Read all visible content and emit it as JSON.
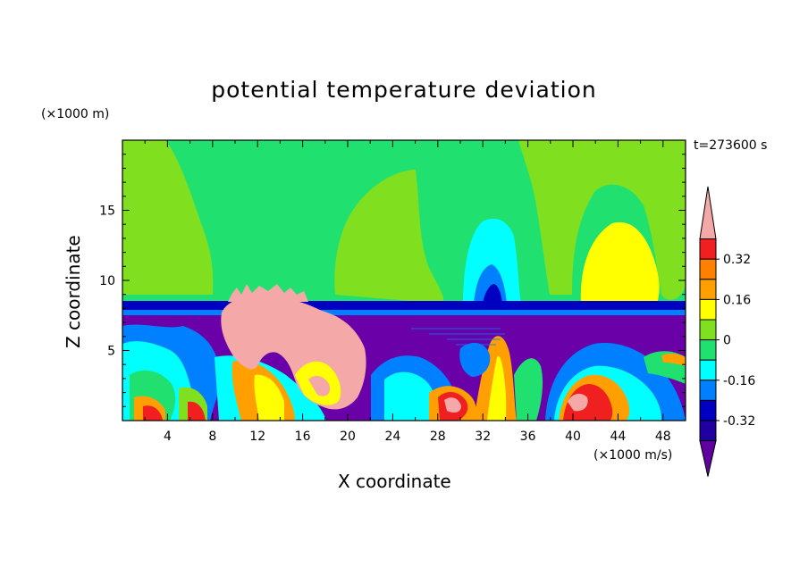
{
  "chart_data": {
    "type": "heatmap",
    "title": "potential temperature deviation",
    "xlabel": "X coordinate",
    "ylabel": "Z coordinate",
    "x_unit": "(×1000 m/s)",
    "y_unit": "(×1000 m)",
    "time_label": "t=273600 s",
    "xlim": [
      0,
      50
    ],
    "ylim": [
      0,
      20
    ],
    "x_ticks": [
      "4",
      "8",
      "12",
      "16",
      "20",
      "24",
      "28",
      "32",
      "36",
      "40",
      "44",
      "48"
    ],
    "y_ticks": [
      "5",
      "10",
      "15"
    ],
    "colorbar": {
      "levels": [
        "0.32",
        "0.16",
        "0",
        "-0.16",
        "-0.32"
      ],
      "level_values": [
        0.32,
        0.16,
        0,
        -0.16,
        -0.32
      ],
      "colors": [
        "#f5a8a8",
        "#f02020",
        "#ff7f00",
        "#ffa000",
        "#ffff00",
        "#80e020",
        "#20e070",
        "#00ffff",
        "#0080ff",
        "#0000c0",
        "#2000a0",
        "#6000a0"
      ]
    },
    "palette": {
      "pink": "#f5a8a8",
      "red": "#f02020",
      "orange": "#ff8000",
      "yelorange": "#ffa800",
      "yellow": "#ffff00",
      "lime": "#80e020",
      "green": "#20e070",
      "cyan": "#00ffff",
      "blue": "#0080ff",
      "navy": "#0000c0",
      "darkblue": "#2000a0",
      "purple": "#6a00a8"
    }
  }
}
